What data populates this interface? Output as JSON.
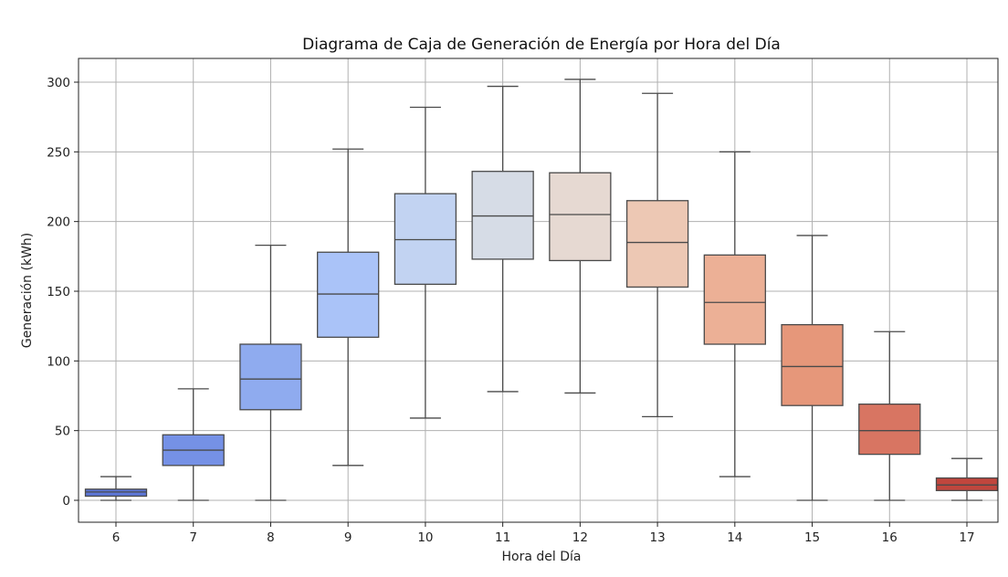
{
  "chart_data": {
    "type": "box",
    "title": "Diagrama de Caja de Generación de Energía por Hora del Día",
    "xlabel": "Hora del Día",
    "ylabel": "Generación (kWh)",
    "categories": [
      "6",
      "7",
      "8",
      "9",
      "10",
      "11",
      "12",
      "13",
      "14",
      "15",
      "16",
      "17"
    ],
    "yticks": [
      "0",
      "50",
      "100",
      "150",
      "200",
      "250",
      "300"
    ],
    "ylim": [
      -15,
      317
    ],
    "grid": true,
    "boxes": [
      {
        "category": "6",
        "whisker_low": 0,
        "q1": 3,
        "median": 6,
        "q3": 8,
        "whisker_high": 17,
        "color": "#5d77d8"
      },
      {
        "category": "7",
        "whisker_low": 0,
        "q1": 25,
        "median": 36,
        "q3": 47,
        "whisker_high": 80,
        "color": "#7591e6"
      },
      {
        "category": "8",
        "whisker_low": 0,
        "q1": 65,
        "median": 87,
        "q3": 112,
        "whisker_high": 183,
        "color": "#8fabef"
      },
      {
        "category": "9",
        "whisker_low": 25,
        "q1": 117,
        "median": 148,
        "q3": 178,
        "whisker_high": 252,
        "color": "#aac3f8"
      },
      {
        "category": "10",
        "whisker_low": 59,
        "q1": 155,
        "median": 187,
        "q3": 220,
        "whisker_high": 282,
        "color": "#c2d3f2"
      },
      {
        "category": "11",
        "whisker_low": 78,
        "q1": 173,
        "median": 204,
        "q3": 236,
        "whisker_high": 297,
        "color": "#d6dce6"
      },
      {
        "category": "12",
        "whisker_low": 77,
        "q1": 172,
        "median": 205,
        "q3": 235,
        "whisker_high": 302,
        "color": "#e6d9d2"
      },
      {
        "category": "13",
        "whisker_low": 60,
        "q1": 153,
        "median": 185,
        "q3": 215,
        "whisker_high": 292,
        "color": "#edc8b4"
      },
      {
        "category": "14",
        "whisker_low": 17,
        "q1": 112,
        "median": 142,
        "q3": 176,
        "whisker_high": 250,
        "color": "#ecb096"
      },
      {
        "category": "15",
        "whisker_low": 0,
        "q1": 68,
        "median": 96,
        "q3": 126,
        "whisker_high": 190,
        "color": "#e6977a"
      },
      {
        "category": "16",
        "whisker_low": 0,
        "q1": 33,
        "median": 50,
        "q3": 69,
        "whisker_high": 121,
        "color": "#d87562"
      },
      {
        "category": "17",
        "whisker_low": 0,
        "q1": 7,
        "median": 11,
        "q3": 16,
        "whisker_high": 30,
        "color": "#c1463d"
      }
    ]
  }
}
